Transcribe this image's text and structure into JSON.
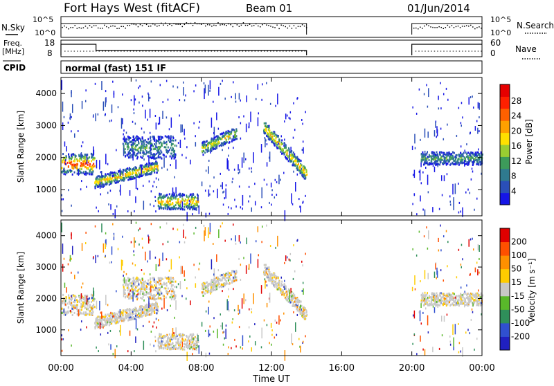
{
  "header": {
    "station": "Fort Hays West (fitACF)",
    "beam": "Beam 01",
    "date": "01/Jun/2014"
  },
  "top_panels": {
    "nsky_label": "N.Sky",
    "nsky_ticks": [
      "10^5",
      "10^0"
    ],
    "nsearch_label": "N.Search",
    "nsearch_ticks": [
      "10^5",
      "10^0"
    ],
    "freq_label": "Freq.",
    "freq_unit": "[MHz]",
    "freq_ticks": [
      "18",
      "8"
    ],
    "nave_label": "Nave",
    "nave_ticks": [
      "60",
      "0"
    ],
    "cpid_label": "CPID",
    "cpid_value": "normal (fast) 151 IF"
  },
  "chart_data": [
    {
      "type": "heatmap",
      "panel": "power",
      "ylabel": "Slant Range [km]",
      "xlabel": "",
      "ylim": [
        180,
        4500
      ],
      "y_ticks": [
        "1000",
        "2000",
        "3000",
        "4000"
      ],
      "xlim_hours": [
        0,
        24
      ],
      "colorbar": {
        "label": "Power [dB]",
        "ticks": [
          "4",
          "8",
          "12",
          "16",
          "20",
          "24",
          "28"
        ],
        "colors": [
          "#1616e6",
          "#2a4fb8",
          "#2f7a8f",
          "#3d9b5a",
          "#9acd32",
          "#ffe000",
          "#ffa000",
          "#ff6000",
          "#ff2000",
          "#e60000"
        ]
      },
      "data_gaps_hours": [
        [
          14,
          20
        ]
      ],
      "echo_regions": [
        {
          "t": [
            0.0,
            1.9
          ],
          "range_km": [
            1500,
            2150
          ],
          "max_db": 28
        },
        {
          "t": [
            1.9,
            5.5
          ],
          "range_km": [
            1100,
            1800
          ],
          "max_db": 20
        },
        {
          "t": [
            3.5,
            6.5
          ],
          "range_km": [
            2000,
            2700
          ],
          "max_db": 12
        },
        {
          "t": [
            5.5,
            7.8
          ],
          "range_km": [
            400,
            900
          ],
          "max_db": 20
        },
        {
          "t": [
            8.0,
            10.0
          ],
          "range_km": [
            2200,
            3000
          ],
          "max_db": 16
        },
        {
          "t": [
            11.5,
            14.0
          ],
          "range_km": [
            1300,
            3000
          ],
          "max_db": 20
        },
        {
          "t": [
            20.5,
            24.0
          ],
          "range_km": [
            1800,
            2200
          ],
          "max_db": 10
        }
      ]
    },
    {
      "type": "heatmap",
      "panel": "velocity",
      "ylabel": "Slant Range [km]",
      "xlabel": "Time UT",
      "ylim": [
        180,
        4500
      ],
      "y_ticks": [
        "1000",
        "2000",
        "3000",
        "4000"
      ],
      "x_ticks": [
        "00:00",
        "04:00",
        "08:00",
        "12:00",
        "16:00",
        "20:00",
        "00:00"
      ],
      "xlim_hours": [
        0,
        24
      ],
      "colorbar": {
        "label": "Velocity [m s⁻¹]",
        "ticks": [
          "200",
          "100",
          "50",
          "15",
          "-15",
          "-50",
          "-100",
          "-200"
        ],
        "colors": [
          "#2020c0",
          "#3050d0",
          "#2f8f5a",
          "#59b82a",
          "#c8c8c8",
          "#ffcc00",
          "#ff9000",
          "#ff5000",
          "#e00000"
        ]
      },
      "data_gaps_hours": [
        [
          14,
          20
        ]
      ]
    }
  ]
}
